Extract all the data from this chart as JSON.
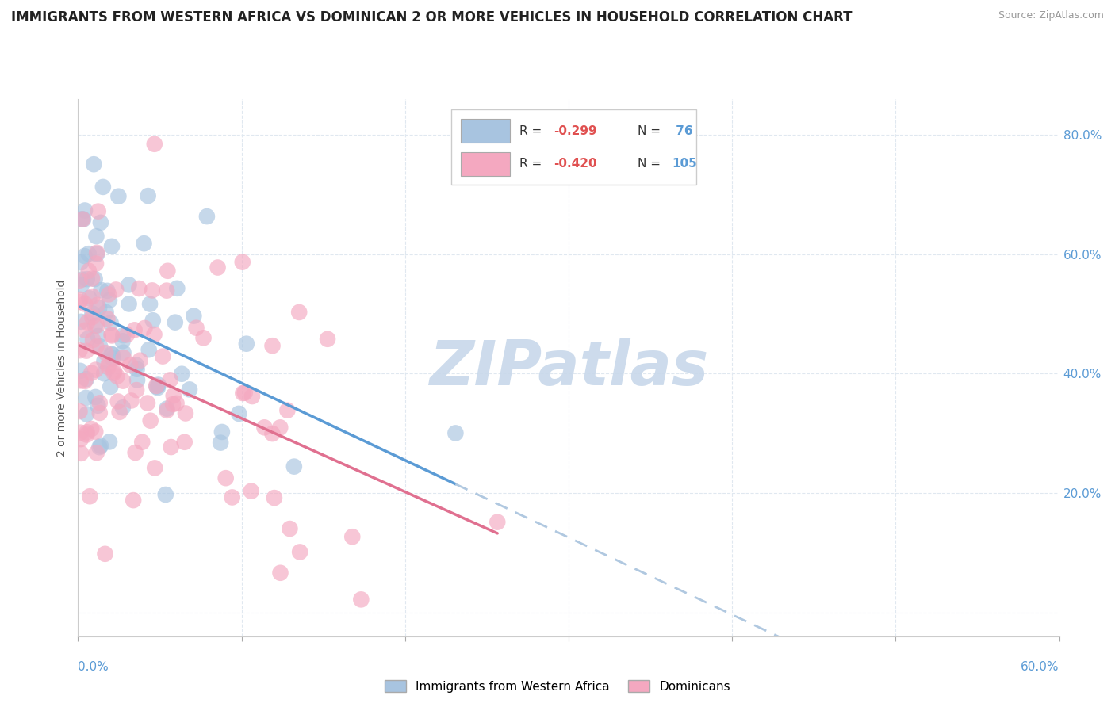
{
  "title": "IMMIGRANTS FROM WESTERN AFRICA VS DOMINICAN 2 OR MORE VEHICLES IN HOUSEHOLD CORRELATION CHART",
  "source": "Source: ZipAtlas.com",
  "ylabel_label": "2 or more Vehicles in Household",
  "legend_r1": "R = -0.299",
  "legend_n1": "N =  76",
  "legend_r2": "R = -0.420",
  "legend_n2": "N = 105",
  "legend_label1": "Immigrants from Western Africa",
  "legend_label2": "Dominicans",
  "blue_color": "#a8c4e0",
  "pink_color": "#f4a8c0",
  "trendline_blue": "#5b9bd5",
  "trendline_pink": "#e07090",
  "trendline_dashed": "#b0c8e0",
  "watermark": "ZIPatlas",
  "watermark_color": "#c8d8ea",
  "xmin": 0.0,
  "xmax": 0.6,
  "ymin": -0.04,
  "ymax": 0.86,
  "r_value_color": "#e05050",
  "n_value_color": "#5b9bd5",
  "right_axis_color": "#5b9bd5",
  "grid_color": "#e0e8f0",
  "bg_color": "#ffffff"
}
